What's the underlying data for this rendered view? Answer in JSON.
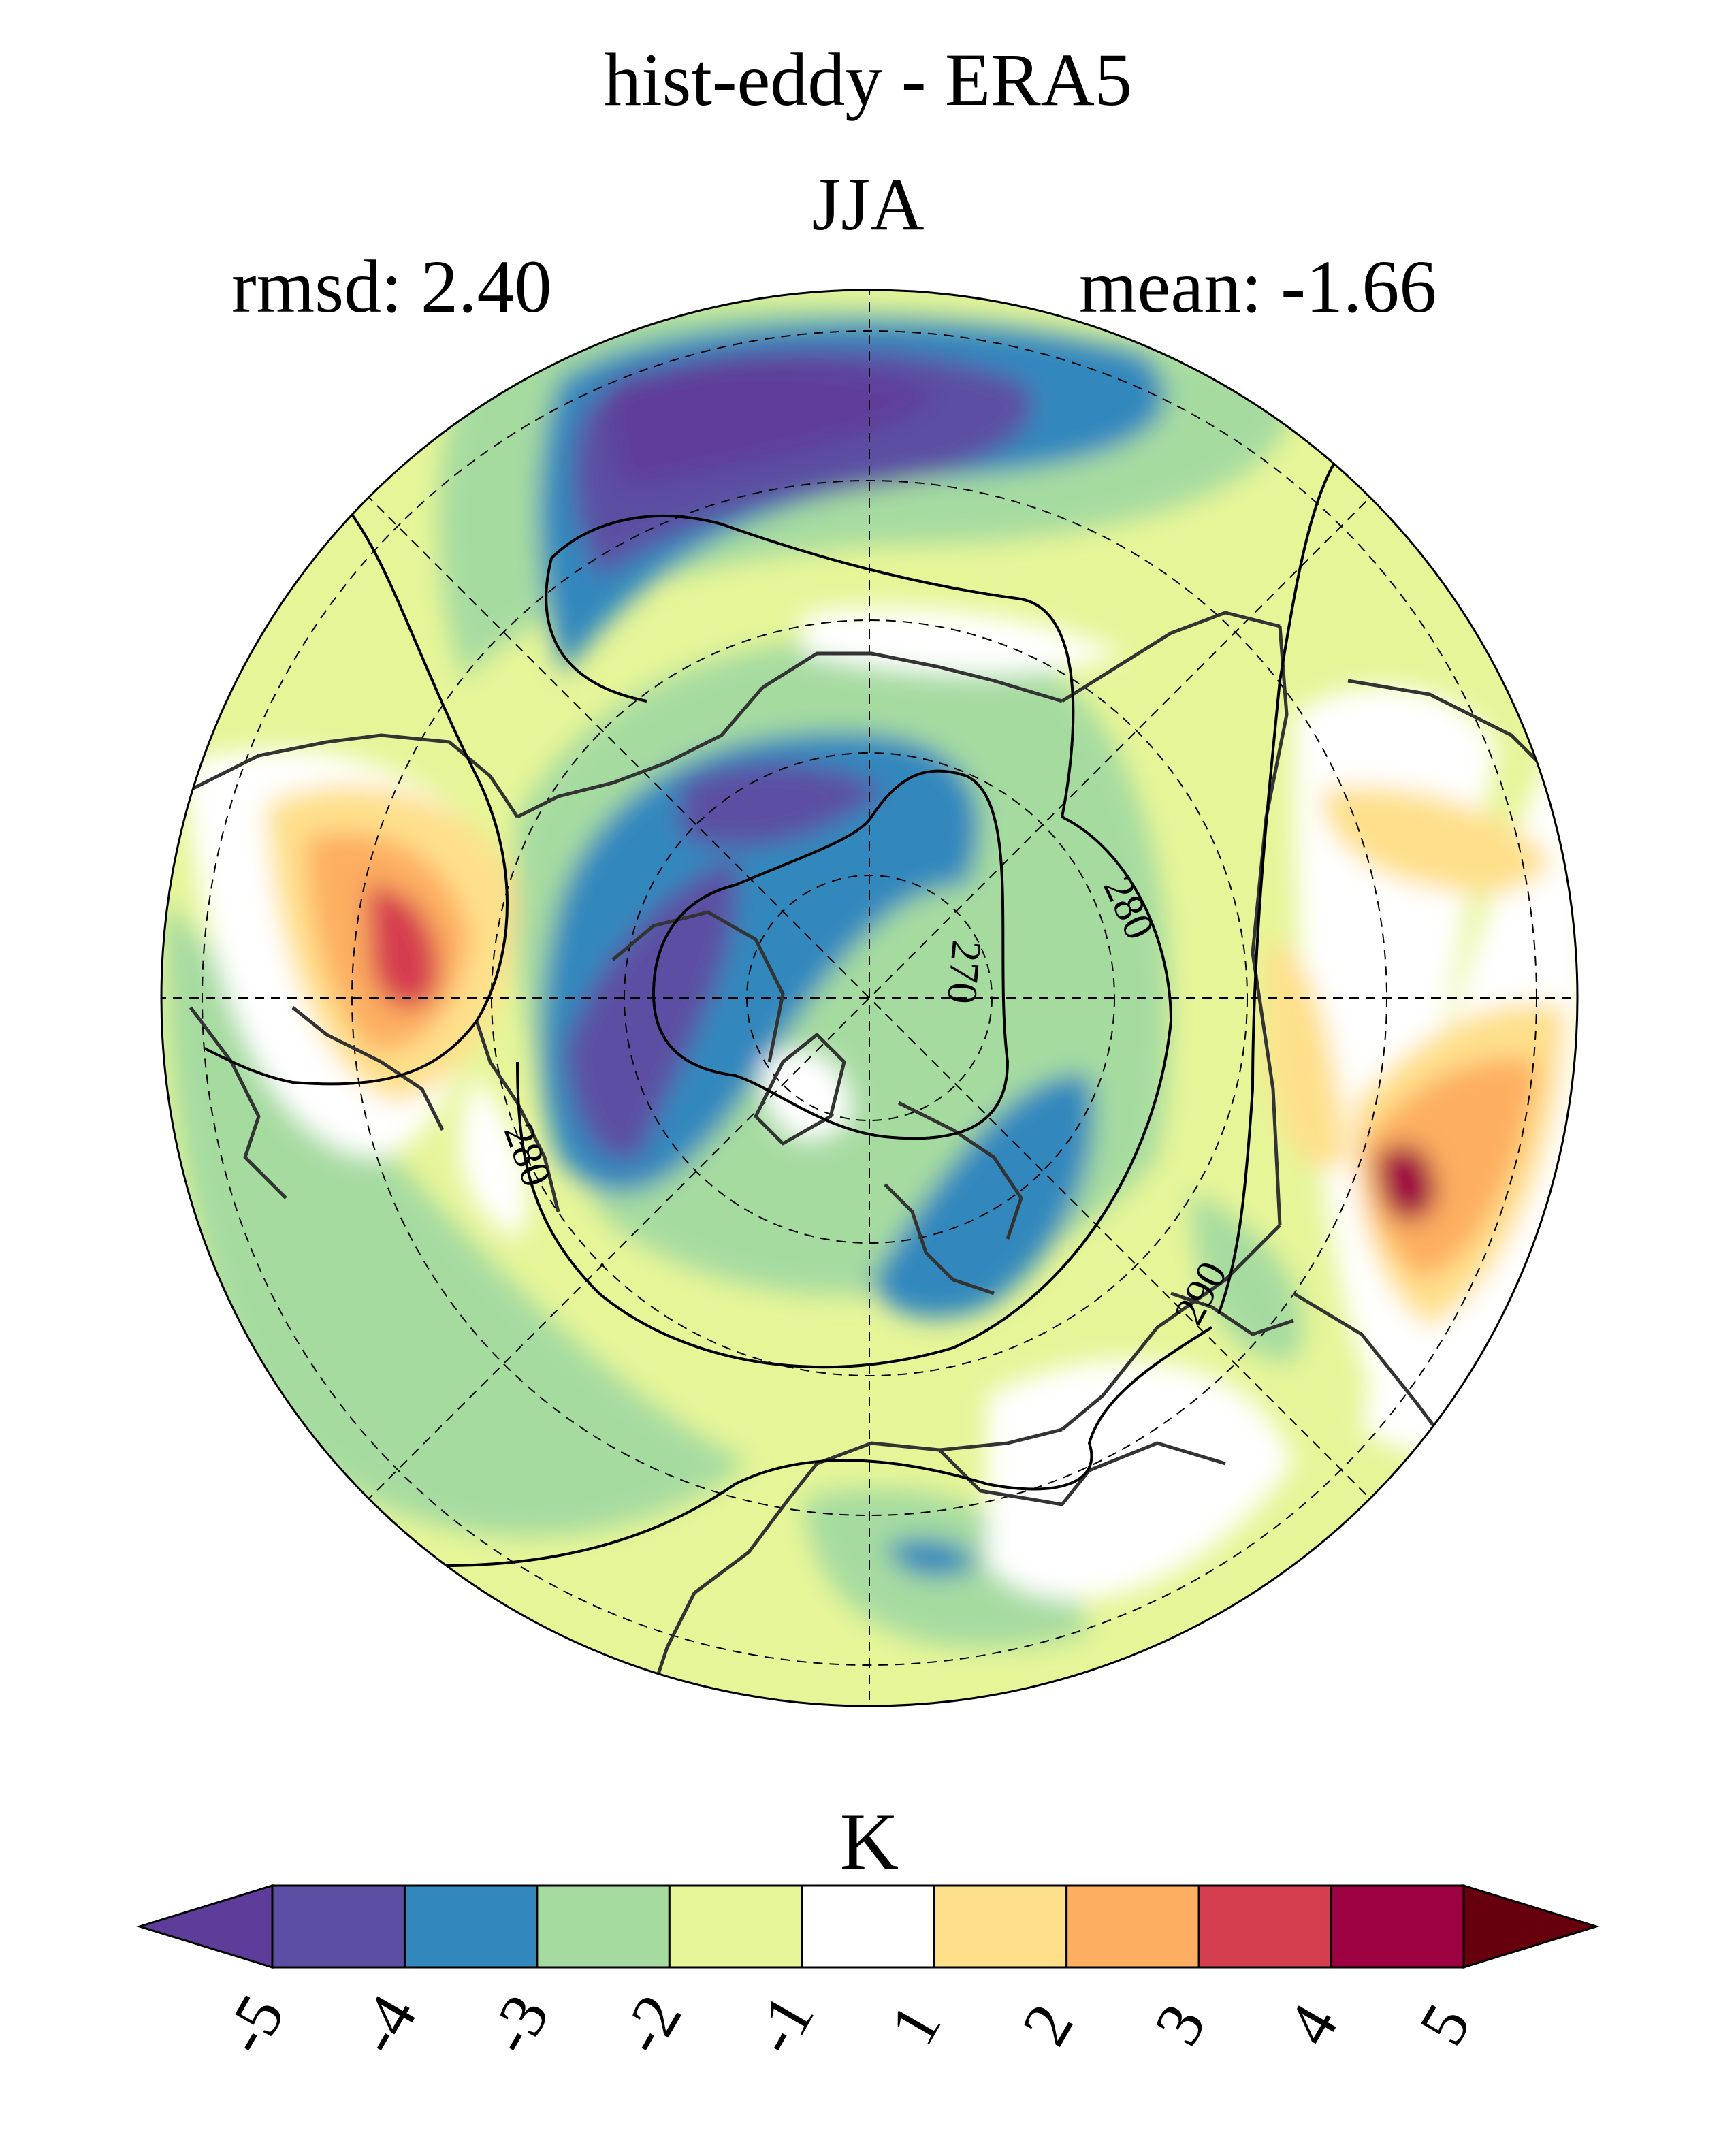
{
  "title": "hist-eddy - ERA5",
  "subtitle": "JJA",
  "stats": {
    "rmsd": "rmsd: 2.40",
    "mean": "mean: -1.66"
  },
  "colorbar": {
    "unit": "K",
    "ticks": [
      "-5",
      "-4",
      "-3",
      "-2",
      "-1",
      "1",
      "2",
      "3",
      "4",
      "5"
    ],
    "colors": [
      "#5e3c99",
      "#5c4fa3",
      "#3288bd",
      "#a6dba0",
      "#e6f598",
      "#ffffff",
      "#fee08b",
      "#fdae61",
      "#d53e4f",
      "#9e0142",
      "#67000d"
    ]
  },
  "contour_labels": [
    "280",
    "270",
    "280",
    "290"
  ],
  "map": {
    "projection": "north polar stereographic",
    "coastlines": true,
    "graticule": "dashed"
  }
}
